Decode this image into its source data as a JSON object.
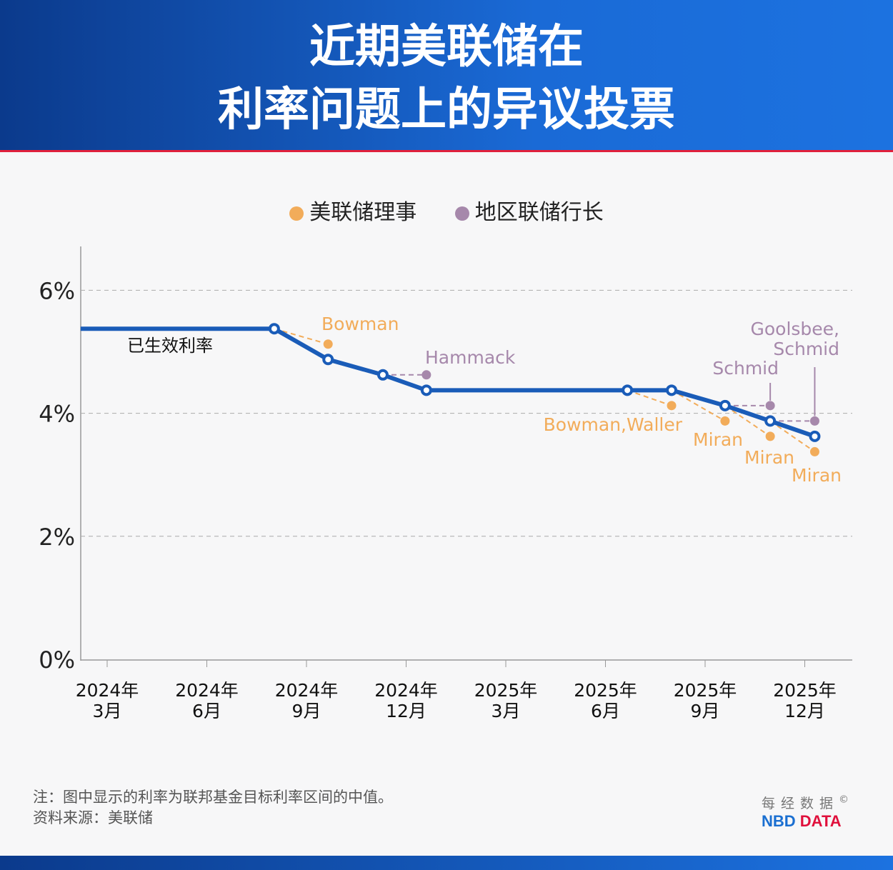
{
  "title": {
    "line1": "近期美联储在",
    "line2": "利率问题上的异议投票"
  },
  "colors": {
    "main": "#1a5cb8",
    "governor": "#f2ac5a",
    "regional": "#a688ab"
  },
  "chart_data": {
    "type": "line",
    "x_unit": "months since 2024年3月",
    "ylim": [
      0,
      6.8
    ],
    "yticks": [
      {
        "v": 0,
        "label": "0%"
      },
      {
        "v": 2,
        "label": "2%"
      },
      {
        "v": 4,
        "label": "4%"
      },
      {
        "v": 6,
        "label": "6%"
      }
    ],
    "xticks": [
      {
        "v": 0,
        "l1": "2024年",
        "l2": "3月"
      },
      {
        "v": 3,
        "l1": "2024年",
        "l2": "6月"
      },
      {
        "v": 6,
        "l1": "2024年",
        "l2": "9月"
      },
      {
        "v": 9,
        "l1": "2024年",
        "l2": "12月"
      },
      {
        "v": 12,
        "l1": "2025年",
        "l2": "3月"
      },
      {
        "v": 15,
        "l1": "2025年",
        "l2": "6月"
      },
      {
        "v": 18,
        "l1": "2025年",
        "l2": "9月"
      },
      {
        "v": 21,
        "l1": "2025年",
        "l2": "12月"
      }
    ],
    "legend": [
      {
        "label": "美联储理事",
        "group": "governor"
      },
      {
        "label": "地区联储行长",
        "group": "regional"
      }
    ],
    "series": [
      {
        "name": "已生效利率",
        "points": [
          [
            -0.8,
            5.375
          ],
          [
            5.03,
            5.375
          ],
          [
            6.65,
            4.875
          ],
          [
            8.3,
            4.625
          ],
          [
            9.61,
            4.375
          ],
          [
            15.66,
            4.375
          ],
          [
            16.99,
            4.375
          ],
          [
            18.6,
            4.125
          ],
          [
            19.96,
            3.875
          ],
          [
            21.3,
            3.625
          ]
        ]
      }
    ],
    "dissents": [
      {
        "label": "Bowman",
        "group": "governor",
        "x": 6.65,
        "y": 5.125,
        "from": 1
      },
      {
        "label": "Hammack",
        "group": "regional",
        "x": 9.61,
        "y": 4.625,
        "from": 3
      },
      {
        "label": "Bowman,Waller",
        "group": "governor",
        "x": 16.99,
        "y": 4.125,
        "from": 5
      },
      {
        "label": "Miran",
        "group": "governor",
        "x": 18.6,
        "y": 3.875,
        "from": 6
      },
      {
        "label": "Schmid",
        "group": "regional",
        "x": 19.96,
        "y": 4.125,
        "from": 7
      },
      {
        "label": "Miran",
        "group": "governor",
        "x": 19.96,
        "y": 3.625,
        "from": 7
      },
      {
        "label": "Goolsbee,",
        "label2": "Schmid",
        "group": "regional",
        "x": 21.3,
        "y": 3.875,
        "from": 8
      },
      {
        "label": "Miran",
        "group": "governor",
        "x": 21.3,
        "y": 3.375,
        "from": 8
      }
    ]
  },
  "footer": {
    "note": "注：图中显示的利率为联邦基金目标利率区间的中值。",
    "source": "资料来源：美联储",
    "logo_cn": "每经数据",
    "logo_nbd": "NBD",
    "logo_data": "DATA",
    "copyright": "©"
  }
}
